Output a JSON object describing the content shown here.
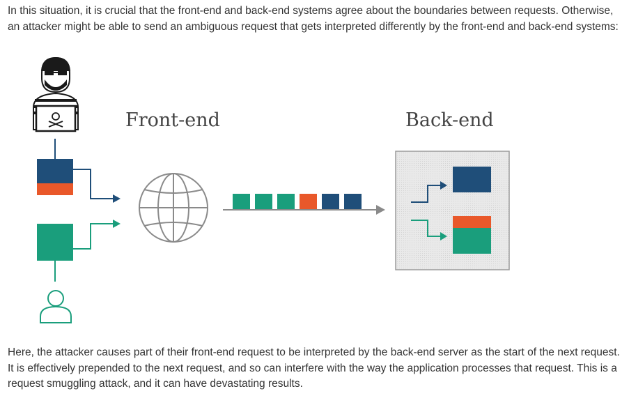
{
  "text": {
    "para1": "In this situation, it is crucial that the front-end and back-end systems agree about the boundaries between requests. Otherwise, an attacker might be able to send an ambiguous request that gets interpreted differently by the front-end and back-end systems:",
    "para2": "Here, the attacker causes part of their front-end request to be interpreted by the back-end server as the start of the next request. It is effectively prepended to the next request, and so can interfere with the way the application processes that request. This is a request smuggling attack, and it can have devastating results."
  },
  "diagram": {
    "frontend_label": "Front-end",
    "backend_label": "Back-end"
  },
  "colors": {
    "navy": "#1f4e79",
    "orange": "#e9582a",
    "teal": "#1a9e7c",
    "gray_icon": "#8a8a8a",
    "backend_bg": "#e6e6e6"
  }
}
